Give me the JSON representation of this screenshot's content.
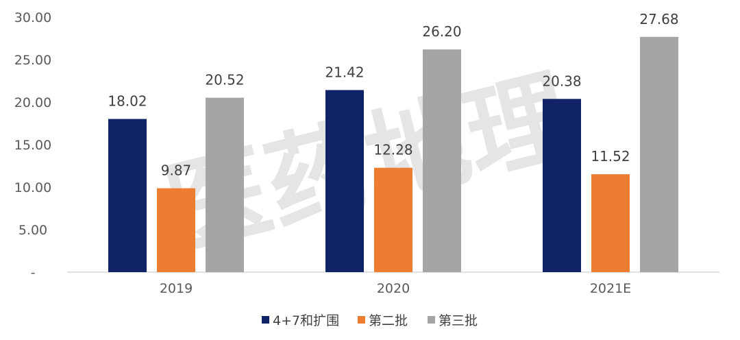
{
  "chart_data": {
    "type": "bar",
    "title": "",
    "xlabel": "",
    "ylabel": "",
    "categories": [
      "2019",
      "2020",
      "2021E"
    ],
    "ylim": [
      0,
      30
    ],
    "y_ticks": [
      "-",
      "5.00",
      "10.00",
      "15.00",
      "20.00",
      "25.00",
      "30.00"
    ],
    "grid": false,
    "legend_position": "bottom",
    "series": [
      {
        "name": "4+7和扩围",
        "color": "#0f2366",
        "values": [
          18.02,
          21.42,
          20.38
        ],
        "labels": [
          "18.02",
          "21.42",
          "20.38"
        ]
      },
      {
        "name": "第二批",
        "color": "#ed7d31",
        "values": [
          9.87,
          12.28,
          11.52
        ],
        "labels": [
          "9.87",
          "12.28",
          "11.52"
        ]
      },
      {
        "name": "第三批",
        "color": "#a5a5a5",
        "values": [
          20.52,
          26.2,
          27.68
        ],
        "labels": [
          "20.52",
          "26.20",
          "27.68"
        ]
      }
    ],
    "watermark": "医药地理"
  }
}
